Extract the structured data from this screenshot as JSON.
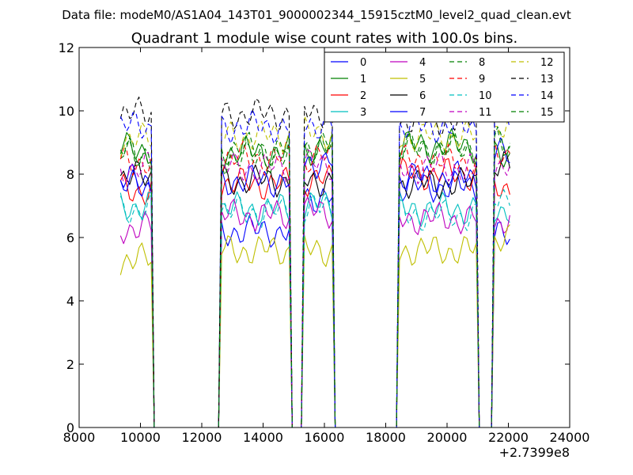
{
  "figure": {
    "suptitle": "Data file: modeM0/AS1A04_143T01_9000002344_15915cztM0_level2_quad_clean.evt"
  },
  "chart_data": {
    "type": "line",
    "title": "Quadrant 1 module wise count rates with 100.0s bins.",
    "xlabel": "",
    "ylabel": "",
    "xlim": [
      8000,
      24000
    ],
    "ylim": [
      0,
      12
    ],
    "x_offset_label": "+2.7399e8",
    "xticks": [
      8000,
      10000,
      12000,
      14000,
      16000,
      18000,
      20000,
      22000,
      24000
    ],
    "xtick_labels": [
      "8000",
      "10000",
      "12000",
      "14000",
      "16000",
      "18000",
      "20000",
      "22000",
      "24000"
    ],
    "yticks": [
      0,
      2,
      4,
      6,
      8,
      10,
      12
    ],
    "ytick_labels": [
      "0",
      "2",
      "4",
      "6",
      "8",
      "10",
      "12"
    ],
    "grid": false,
    "legend_position": "top-right",
    "legend_columns": 4,
    "segments": [
      {
        "start": 9350,
        "end": 10350,
        "drop_end": 10450
      },
      {
        "start": 12650,
        "end": 14850,
        "drop_end": 15000
      },
      {
        "start": 15350,
        "end": 16250,
        "drop_end": 16300
      },
      {
        "start": 18450,
        "end": 20950,
        "drop_end": 21050
      },
      {
        "start": 21550,
        "end": 22050,
        "drop_end": 22050
      }
    ],
    "series": [
      {
        "name": "0",
        "color": "#0000ff",
        "dash": "solid",
        "levels": [
          7.8,
          6.2,
          7.3,
          7.6,
          6.0
        ]
      },
      {
        "name": "1",
        "color": "#008000",
        "dash": "solid",
        "levels": [
          8.8,
          8.7,
          8.8,
          8.9,
          8.5
        ]
      },
      {
        "name": "2",
        "color": "#ff0000",
        "dash": "solid",
        "levels": [
          7.5,
          7.7,
          7.8,
          8.0,
          7.6
        ]
      },
      {
        "name": "3",
        "color": "#00bfbf",
        "dash": "solid",
        "levels": [
          7.0,
          6.9,
          7.0,
          6.9,
          6.9
        ]
      },
      {
        "name": "4",
        "color": "#bf00bf",
        "dash": "solid",
        "levels": [
          6.3,
          6.7,
          6.8,
          6.6,
          6.5
        ]
      },
      {
        "name": "5",
        "color": "#bfbf00",
        "dash": "solid",
        "levels": [
          5.3,
          5.6,
          5.6,
          5.6,
          5.9
        ]
      },
      {
        "name": "6",
        "color": "#000000",
        "dash": "solid",
        "levels": [
          7.9,
          7.8,
          7.8,
          7.7,
          8.2
        ]
      },
      {
        "name": "7",
        "color": "#0000ff",
        "dash": "solid",
        "levels": [
          7.6,
          7.8,
          8.4,
          7.9,
          8.6
        ]
      },
      {
        "name": "8",
        "color": "#008000",
        "dash": "dashed",
        "levels": [
          8.6,
          8.5,
          8.8,
          8.8,
          8.9
        ]
      },
      {
        "name": "9",
        "color": "#ff0000",
        "dash": "dashed",
        "levels": [
          8.4,
          8.5,
          8.5,
          8.4,
          8.7
        ]
      },
      {
        "name": "10",
        "color": "#00bfbf",
        "dash": "dashed",
        "levels": [
          6.9,
          6.8,
          6.9,
          6.7,
          7.4
        ]
      },
      {
        "name": "11",
        "color": "#bf00bf",
        "dash": "dashed",
        "levels": [
          8.2,
          8.2,
          8.3,
          8.2,
          8.3
        ]
      },
      {
        "name": "12",
        "color": "#bfbf00",
        "dash": "dashed",
        "levels": [
          9.1,
          9.2,
          9.3,
          9.2,
          9.4
        ]
      },
      {
        "name": "13",
        "color": "#000000",
        "dash": "dashed",
        "levels": [
          9.9,
          9.9,
          10.0,
          9.7,
          10.2
        ]
      },
      {
        "name": "14",
        "color": "#0000ff",
        "dash": "dashed",
        "levels": [
          9.5,
          9.5,
          9.6,
          9.5,
          9.8
        ]
      },
      {
        "name": "15",
        "color": "#008000",
        "dash": "dashed",
        "levels": [
          8.7,
          8.8,
          8.9,
          8.8,
          9.0
        ]
      }
    ]
  }
}
